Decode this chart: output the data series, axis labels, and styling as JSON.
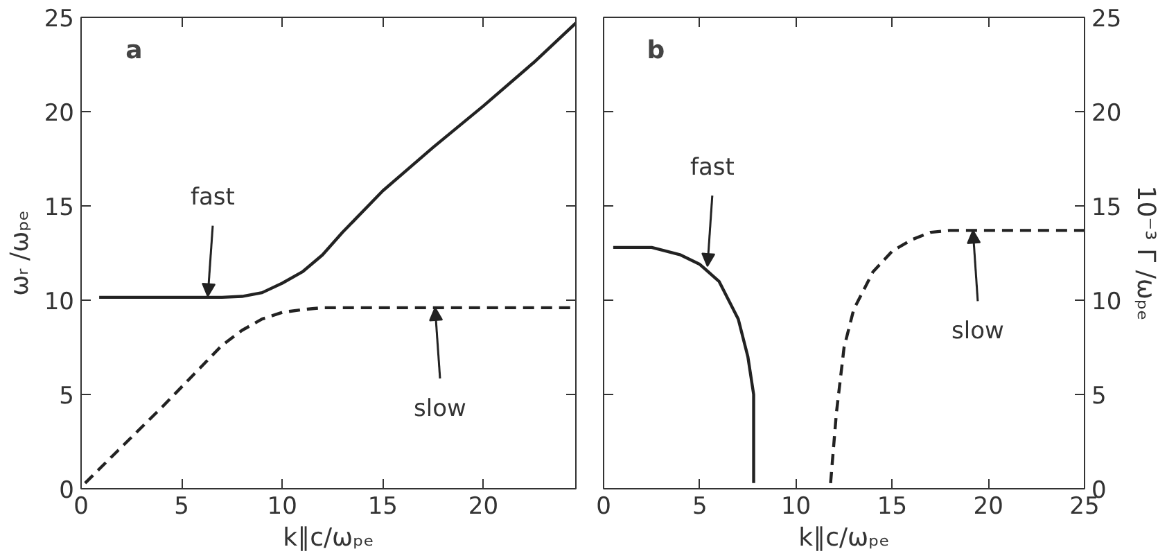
{
  "chart_data": [
    {
      "type": "line",
      "title": "a",
      "xlabel": "k∥c/ωₚₑ",
      "ylabel": "ωᵣ /ωₚₑ",
      "xlim": [
        0,
        24.6
      ],
      "xticks": [
        0,
        5,
        10,
        15,
        20
      ],
      "ylim": [
        0,
        25
      ],
      "yticks": [
        0,
        5,
        10,
        15,
        20,
        25
      ],
      "grid": false,
      "series": [
        {
          "color": "#222222",
          "line_style": "solid",
          "x": [
            0.9,
            3,
            5,
            7,
            8,
            9,
            10,
            11,
            12,
            13,
            15,
            17.5,
            20,
            22.5,
            24.6
          ],
          "values": [
            10.15,
            10.15,
            10.15,
            10.15,
            10.2,
            10.4,
            10.9,
            11.5,
            12.4,
            13.6,
            15.8,
            18.1,
            20.3,
            22.6,
            24.7
          ]
        },
        {
          "color": "#222222",
          "line_style": "dashed",
          "x": [
            0.2,
            2,
            4,
            5,
            6,
            7,
            8,
            9,
            10,
            11,
            12,
            15,
            20,
            24.6
          ],
          "values": [
            0.3,
            2.2,
            4.3,
            5.4,
            6.5,
            7.6,
            8.4,
            9.0,
            9.35,
            9.5,
            9.6,
            9.6,
            9.6,
            9.6
          ]
        }
      ],
      "annotations": [
        {
          "text": "fast",
          "x": 6.3,
          "y": 10.2
        },
        {
          "text": "slow",
          "x": 17.6,
          "y": 9.6
        }
      ]
    },
    {
      "type": "line",
      "title": "b",
      "xlabel": "k∥c/ωₚₑ",
      "ylabel": "10⁻³ Γ /ωₚₑ",
      "xlim": [
        0,
        25
      ],
      "xticks": [
        0,
        5,
        10,
        15,
        20,
        25
      ],
      "ylim": [
        0,
        25
      ],
      "yticks": [
        0,
        5,
        10,
        15,
        20,
        25
      ],
      "grid": false,
      "series": [
        {
          "color": "#222222",
          "line_style": "solid",
          "x": [
            0.5,
            2.5,
            4,
            5,
            6,
            7,
            7.5,
            7.8,
            7.8
          ],
          "values": [
            12.8,
            12.8,
            12.4,
            11.9,
            11.0,
            9.0,
            7.0,
            5.0,
            0.3
          ]
        },
        {
          "color": "#222222",
          "line_style": "dashed",
          "x": [
            11.8,
            12.1,
            12.5,
            13,
            14,
            15,
            16,
            17,
            18,
            20,
            25
          ],
          "values": [
            0.3,
            4,
            7.5,
            9.5,
            11.5,
            12.6,
            13.2,
            13.6,
            13.7,
            13.7,
            13.7
          ]
        }
      ],
      "annotations": [
        {
          "text": "fast",
          "x": 5.4,
          "y": 11.8
        },
        {
          "text": "slow",
          "x": 19.2,
          "y": 13.7
        }
      ]
    }
  ]
}
